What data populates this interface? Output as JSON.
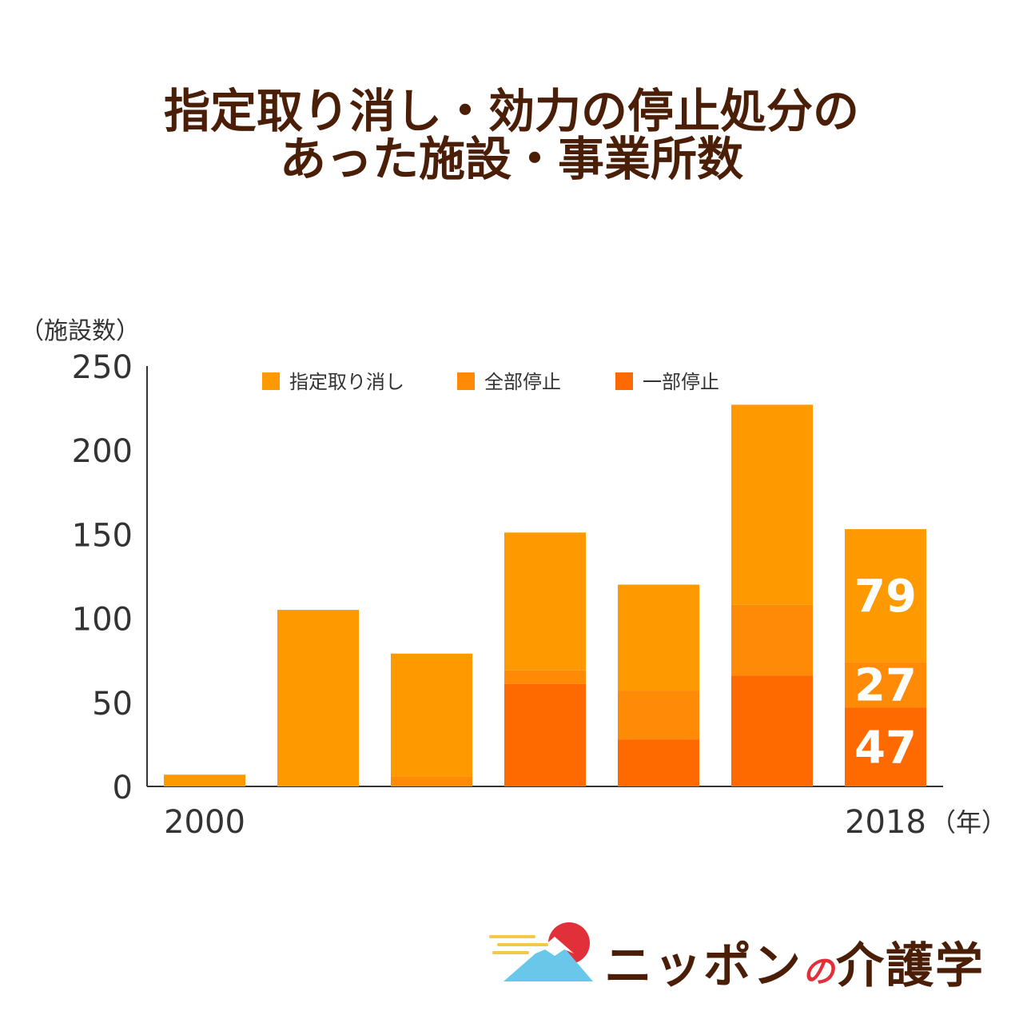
{
  "title_line1": "指定取り消し・効力の停止処分の",
  "title_line2": "あった施設・事業所数",
  "chart_data": {
    "type": "bar",
    "stacked": true,
    "ylabel": "（施設数）",
    "xunit": "（年）",
    "ylim": [
      0,
      250
    ],
    "yticks": [
      0,
      50,
      100,
      150,
      200,
      250
    ],
    "categories": [
      "2000",
      "",
      "",
      "",
      "",
      "",
      "2018"
    ],
    "series": [
      {
        "name": "一部停止",
        "color": "#ff6a00",
        "values": [
          0,
          0,
          0,
          61,
          28,
          66,
          47
        ]
      },
      {
        "name": "全部停止",
        "color": "#ff8a05",
        "values": [
          0,
          0,
          6,
          8,
          29,
          42,
          27
        ]
      },
      {
        "name": "指定取り消し",
        "color": "#ff9900",
        "values": [
          7,
          105,
          73,
          82,
          63,
          119,
          79
        ]
      }
    ],
    "legend_position": "top",
    "legend_order": [
      "指定取り消し",
      "全部停止",
      "一部停止"
    ],
    "data_labels": [
      {
        "category_index": 6,
        "series": "指定取り消し",
        "text": "79"
      },
      {
        "category_index": 6,
        "series": "全部停止",
        "text": "27"
      },
      {
        "category_index": 6,
        "series": "一部停止",
        "text": "47"
      }
    ],
    "grid": false
  },
  "logo": {
    "text_main1": "ニッポン",
    "text_no": "の",
    "text_main2": "介護学",
    "colors": {
      "sun": "#e2303b",
      "mountain": "#69c8ea",
      "cloud": "#f2c74a"
    }
  }
}
